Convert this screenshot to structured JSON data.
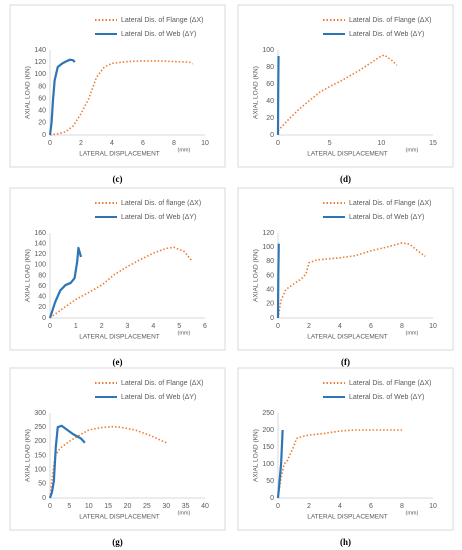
{
  "chart_data": [
    {
      "type": "line",
      "caption": "(c)",
      "x_label": "LATERAL DISPLACEMENT",
      "x_unit": "(mm)",
      "y_label": "AXIAL LOAD (KN)",
      "xlim": [
        0,
        10
      ],
      "xticks": [
        0,
        2,
        4,
        6,
        8,
        10
      ],
      "ylim": [
        0,
        140
      ],
      "yticks": [
        0,
        20,
        40,
        60,
        80,
        100,
        120,
        140
      ],
      "series": [
        {
          "name": "Lateral Dis. of Flange (ΔX)",
          "color": "#ed7d31",
          "style": "dotted",
          "x": [
            0,
            0.5,
            1,
            1.5,
            2,
            2.5,
            3,
            3.5,
            4,
            5,
            6,
            7,
            8,
            9,
            9.2
          ],
          "values": [
            0,
            2,
            5,
            15,
            35,
            60,
            95,
            112,
            118,
            121,
            122,
            122,
            121,
            120,
            117
          ]
        },
        {
          "name": "Lateral Dis. of Web (ΔY)",
          "color": "#2e75b6",
          "style": "solid",
          "x": [
            0,
            0.1,
            0.2,
            0.3,
            0.5,
            0.8,
            1.1,
            1.3,
            1.5,
            1.6
          ],
          "values": [
            0,
            20,
            60,
            90,
            112,
            118,
            122,
            124,
            123,
            120
          ]
        }
      ]
    },
    {
      "type": "line",
      "caption": "(d)",
      "x_label": "LATERAL DISPLACEMENT",
      "x_unit": "(mm)",
      "y_label": "AXIAL LOAD (KN)",
      "xlim": [
        0,
        15
      ],
      "xticks": [
        0,
        5,
        10,
        15
      ],
      "ylim": [
        0,
        100
      ],
      "yticks": [
        0,
        20,
        40,
        60,
        80,
        100
      ],
      "series": [
        {
          "name": "Lateral Dis. of Flange (ΔX)",
          "color": "#ed7d31",
          "style": "dotted",
          "x": [
            0,
            1,
            2,
            3,
            4,
            5,
            6,
            7,
            8,
            9,
            10,
            10.3,
            11,
            11.5
          ],
          "values": [
            5,
            18,
            30,
            40,
            50,
            57,
            63,
            70,
            77,
            85,
            93,
            94,
            88,
            82
          ]
        },
        {
          "name": "Lateral Dis. of Web (ΔY)",
          "color": "#2e75b6",
          "style": "solid",
          "x": [
            0,
            0.02,
            0.05
          ],
          "values": [
            0,
            50,
            93
          ]
        }
      ]
    },
    {
      "type": "line",
      "caption": "(e)",
      "x_label": "LATERAL DISPLACEMENT",
      "x_unit": "(mm)",
      "y_label": "AXIAL LOAD (KN)",
      "xlim": [
        0,
        6
      ],
      "xticks": [
        0,
        1,
        2,
        3,
        4,
        5,
        6
      ],
      "ylim": [
        0,
        160
      ],
      "yticks": [
        0,
        20,
        40,
        60,
        80,
        100,
        120,
        140,
        160
      ],
      "series": [
        {
          "name": "Lateral Dis. of flange (ΔX)",
          "color": "#ed7d31",
          "style": "dotted",
          "x": [
            0,
            0.5,
            1,
            1.5,
            2,
            2.5,
            3,
            3.5,
            4,
            4.5,
            4.8,
            5.2,
            5.5
          ],
          "values": [
            0,
            18,
            35,
            48,
            62,
            82,
            97,
            110,
            122,
            131,
            133,
            125,
            107
          ]
        },
        {
          "name": "Lateral Dis. of Web (ΔY)",
          "color": "#2e75b6",
          "style": "solid",
          "x": [
            0,
            0.2,
            0.4,
            0.6,
            0.8,
            0.95,
            1.05,
            1.1,
            1.2
          ],
          "values": [
            0,
            30,
            52,
            62,
            66,
            75,
            105,
            132,
            115
          ]
        }
      ]
    },
    {
      "type": "line",
      "caption": "(f)",
      "x_label": "LATERAL DISPLACEMENT",
      "x_unit": "(mm)",
      "y_label": "AXIAL LOAD (KN)",
      "xlim": [
        0,
        10
      ],
      "xticks": [
        0,
        2,
        4,
        6,
        8,
        10
      ],
      "ylim": [
        0,
        120
      ],
      "yticks": [
        0,
        20,
        40,
        60,
        80,
        100,
        120
      ],
      "series": [
        {
          "name": "Lateral Dis. of Flange (ΔX)",
          "color": "#ed7d31",
          "style": "dotted",
          "x": [
            0,
            0.2,
            0.5,
            1,
            1.5,
            1.8,
            2,
            2.5,
            4,
            5,
            6,
            7,
            8,
            8.5,
            9,
            9.5
          ],
          "values": [
            0,
            25,
            40,
            48,
            55,
            62,
            78,
            82,
            85,
            88,
            95,
            100,
            106,
            104,
            95,
            87
          ]
        },
        {
          "name": "Lateral Dis. of Web (ΔY)",
          "color": "#2e75b6",
          "style": "solid",
          "x": [
            0,
            0.02,
            0.05
          ],
          "values": [
            0,
            60,
            105
          ]
        }
      ]
    },
    {
      "type": "line",
      "caption": "(g)",
      "x_label": "LATERAL DISPLACEMENT",
      "x_unit": "(mm)",
      "y_label": "AXIAL LOAD (KN)",
      "xlim": [
        0,
        40
      ],
      "xticks": [
        0,
        5,
        10,
        15,
        20,
        25,
        30,
        35,
        40
      ],
      "ylim": [
        0,
        300
      ],
      "yticks": [
        0,
        50,
        100,
        150,
        200,
        250,
        300
      ],
      "series": [
        {
          "name": "Lateral Dis. of Flange (ΔX)",
          "color": "#ed7d31",
          "style": "dotted",
          "x": [
            0,
            0.5,
            1,
            1.5,
            2,
            3,
            5,
            8,
            10,
            13,
            16,
            18,
            22,
            26,
            30
          ],
          "values": [
            0,
            60,
            120,
            150,
            165,
            180,
            200,
            225,
            240,
            248,
            252,
            250,
            240,
            220,
            195
          ]
        },
        {
          "name": "Lateral Dis. of Web (ΔY)",
          "color": "#2e75b6",
          "style": "solid",
          "x": [
            0,
            0.5,
            1,
            1.5,
            2,
            3,
            4,
            6,
            8,
            9
          ],
          "values": [
            0,
            20,
            60,
            180,
            250,
            255,
            245,
            225,
            210,
            195
          ]
        }
      ]
    },
    {
      "type": "line",
      "caption": "(h)",
      "x_label": "LATERAL DISPLACEMENT",
      "x_unit": "(mm)",
      "y_label": "AXIAL LOAD (KN)",
      "xlim": [
        0,
        10
      ],
      "xticks": [
        0,
        2,
        4,
        6,
        8,
        10
      ],
      "ylim": [
        0,
        250
      ],
      "yticks": [
        0,
        50,
        100,
        150,
        200,
        250
      ],
      "series": [
        {
          "name": "Lateral Dis. of Flange (ΔX)",
          "color": "#ed7d31",
          "style": "dotted",
          "x": [
            0,
            0.2,
            0.4,
            0.6,
            0.8,
            1,
            1.2,
            1.5,
            2,
            3,
            4,
            5,
            6,
            7,
            8
          ],
          "values": [
            0,
            60,
            100,
            110,
            130,
            150,
            175,
            180,
            185,
            190,
            197,
            200,
            200,
            200,
            200
          ]
        },
        {
          "name": "Lateral Dis. of Web (ΔY)",
          "color": "#2e75b6",
          "style": "solid",
          "x": [
            0,
            0.1,
            0.2,
            0.25,
            0.3
          ],
          "values": [
            0,
            50,
            100,
            150,
            200
          ]
        }
      ]
    }
  ]
}
